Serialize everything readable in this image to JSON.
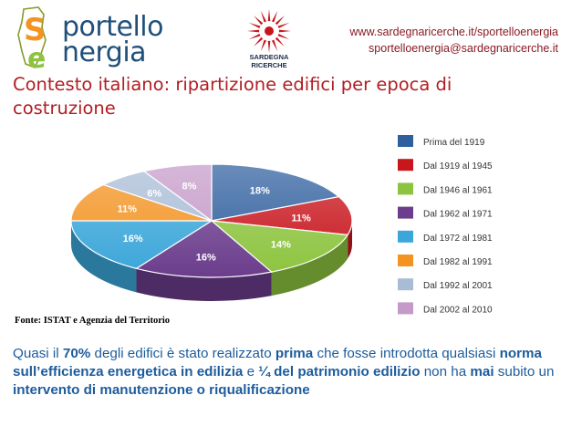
{
  "header": {
    "logo_line1": "portello",
    "logo_line2": "nergia",
    "logo_initial1": "S",
    "logo_initial2": "e",
    "sun_label_line1": "SARDEGNA",
    "sun_label_line2": "RICERCHE",
    "website": "www.sardegnaricerche.it/sportelloenergia",
    "email": "sportelloenergia@sardegnaricerche.it"
  },
  "slide": {
    "title": "Contesto italiano: ripartizione edifici per epoca di costruzione",
    "source": "Fonte: ISTAT e Agenzia del Territorio"
  },
  "chart_data": {
    "type": "pie",
    "categories": [
      "Prima del 1919",
      "Dal 1919 al 1945",
      "Dal 1946 al 1961",
      "Dal 1962 al 1971",
      "Dal 1972 al 1981",
      "Dal 1982 al 1991",
      "Dal 1992 al 2001",
      "Dal 2002 al 2010"
    ],
    "values": [
      18,
      11,
      14,
      16,
      16,
      11,
      6,
      8
    ],
    "labels": [
      "18%",
      "11%",
      "14%",
      "16%",
      "16%",
      "11%",
      "6%",
      "8%"
    ],
    "colors": [
      "#2f5f9e",
      "#c8161d",
      "#8dc43f",
      "#6b3d8c",
      "#3aa6d9",
      "#f39322",
      "#a9bcd6",
      "#c59ac9"
    ],
    "legend_position": "right"
  },
  "body": {
    "p1": "Quasi il ",
    "b1": "70%",
    "p2": " degli edifici è stato realizzato ",
    "b2": "prima",
    "p3": " che fosse introdotta qualsiasi ",
    "b3": "norma sull’efficienza energetica in edilizia",
    "p4": " e ",
    "b4": "¼ del patrimonio edilizio",
    "p5": " non ha ",
    "b5": "mai",
    "p6": " subito un ",
    "b6": "intervento di manutenzione o riqualificazione"
  }
}
